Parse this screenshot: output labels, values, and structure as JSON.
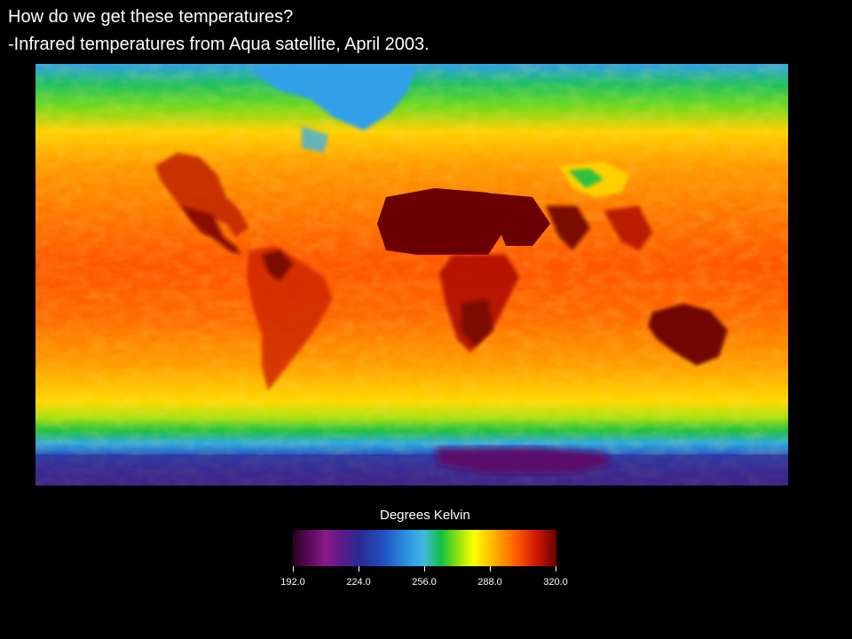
{
  "heading": {
    "line1": "How do we get these temperatures?",
    "line2": "-Infrared temperatures from Aqua satellite, April 2003."
  },
  "legend": {
    "title": "Degrees Kelvin",
    "range": [
      192.0,
      320.0
    ],
    "ticks": [
      "192.0",
      "224.0",
      "256.0",
      "288.0",
      "320.0"
    ],
    "colormap": [
      {
        "value": 192.0,
        "color": "#2a0020"
      },
      {
        "value": 200.0,
        "color": "#5a0a5a"
      },
      {
        "value": 208.0,
        "color": "#8a1a8a"
      },
      {
        "value": 216.0,
        "color": "#5a1a8a"
      },
      {
        "value": 224.0,
        "color": "#2a2a90"
      },
      {
        "value": 236.0,
        "color": "#2050c0"
      },
      {
        "value": 250.0,
        "color": "#30a0e8"
      },
      {
        "value": 256.0,
        "color": "#40b8d8"
      },
      {
        "value": 264.0,
        "color": "#10c040"
      },
      {
        "value": 272.0,
        "color": "#90e010"
      },
      {
        "value": 280.0,
        "color": "#ffff00"
      },
      {
        "value": 290.0,
        "color": "#ffb000"
      },
      {
        "value": 300.0,
        "color": "#ff6000"
      },
      {
        "value": 310.0,
        "color": "#d01800"
      },
      {
        "value": 320.0,
        "color": "#6a0000"
      }
    ]
  },
  "map": {
    "colors": {
      "polar_antarctic": "#3a1a8a",
      "antarctica_core": "#5a0a6a",
      "southern_ocean": "#2040c0",
      "cold_blue": "#30a0e8",
      "green_band": "#20c040",
      "yellow_band": "#ffd000",
      "warm_orange": "#ff8c00",
      "tropical": "#ff5a00",
      "hot_land": "#b01000",
      "hottest": "#6a0000"
    }
  }
}
